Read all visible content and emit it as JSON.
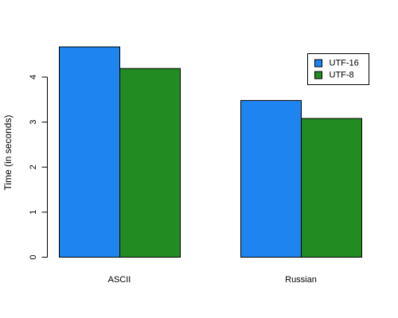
{
  "chart_data": {
    "type": "bar",
    "title": "",
    "xlabel": "",
    "ylabel": "Time (in seconds)",
    "categories": [
      "ASCII",
      "Russian"
    ],
    "series": [
      {
        "name": "UTF-16",
        "color": "#1e84f0",
        "values": [
          4.67,
          3.48
        ]
      },
      {
        "name": "UTF-8",
        "color": "#228b22",
        "values": [
          4.19,
          3.08
        ]
      }
    ],
    "ylim": [
      0,
      4.67
    ],
    "yticks": [
      0,
      1,
      2,
      3,
      4
    ],
    "grid": false,
    "legend_position": "top-right"
  }
}
